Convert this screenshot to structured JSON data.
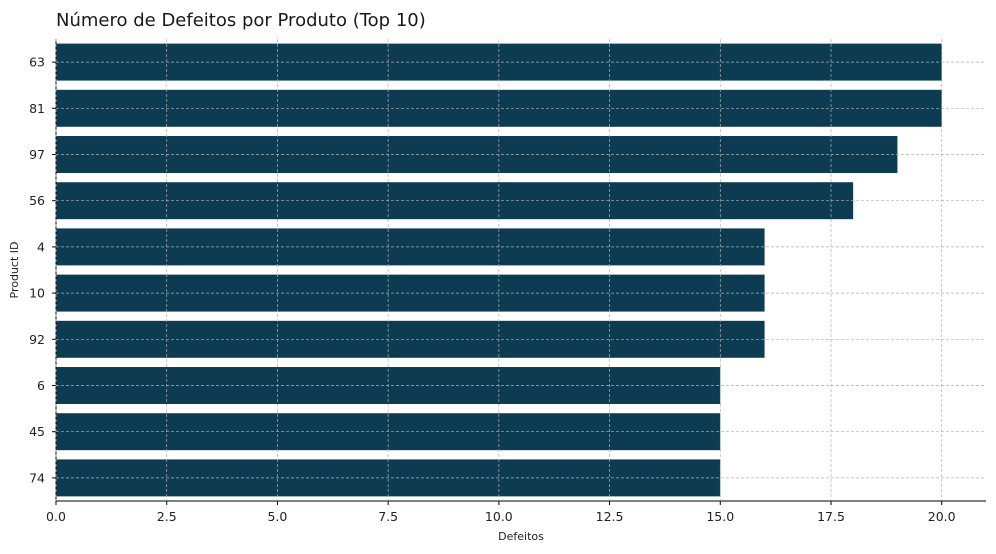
{
  "chart_data": {
    "type": "bar",
    "orientation": "horizontal",
    "title": "Número de Defeitos por Produto (Top 10)",
    "xlabel": "Defeitos",
    "ylabel": "Product ID",
    "categories": [
      "63",
      "81",
      "97",
      "56",
      "4",
      "10",
      "92",
      "6",
      "45",
      "74"
    ],
    "values": [
      20,
      20,
      19,
      18,
      16,
      16,
      16,
      15,
      15,
      15
    ],
    "xlim": [
      0,
      21
    ],
    "xticks": [
      "0.0",
      "2.5",
      "5.0",
      "7.5",
      "10.0",
      "12.5",
      "15.0",
      "17.5",
      "20.0"
    ],
    "bar_color": "#0d3b52",
    "grid": true,
    "legend": false
  }
}
